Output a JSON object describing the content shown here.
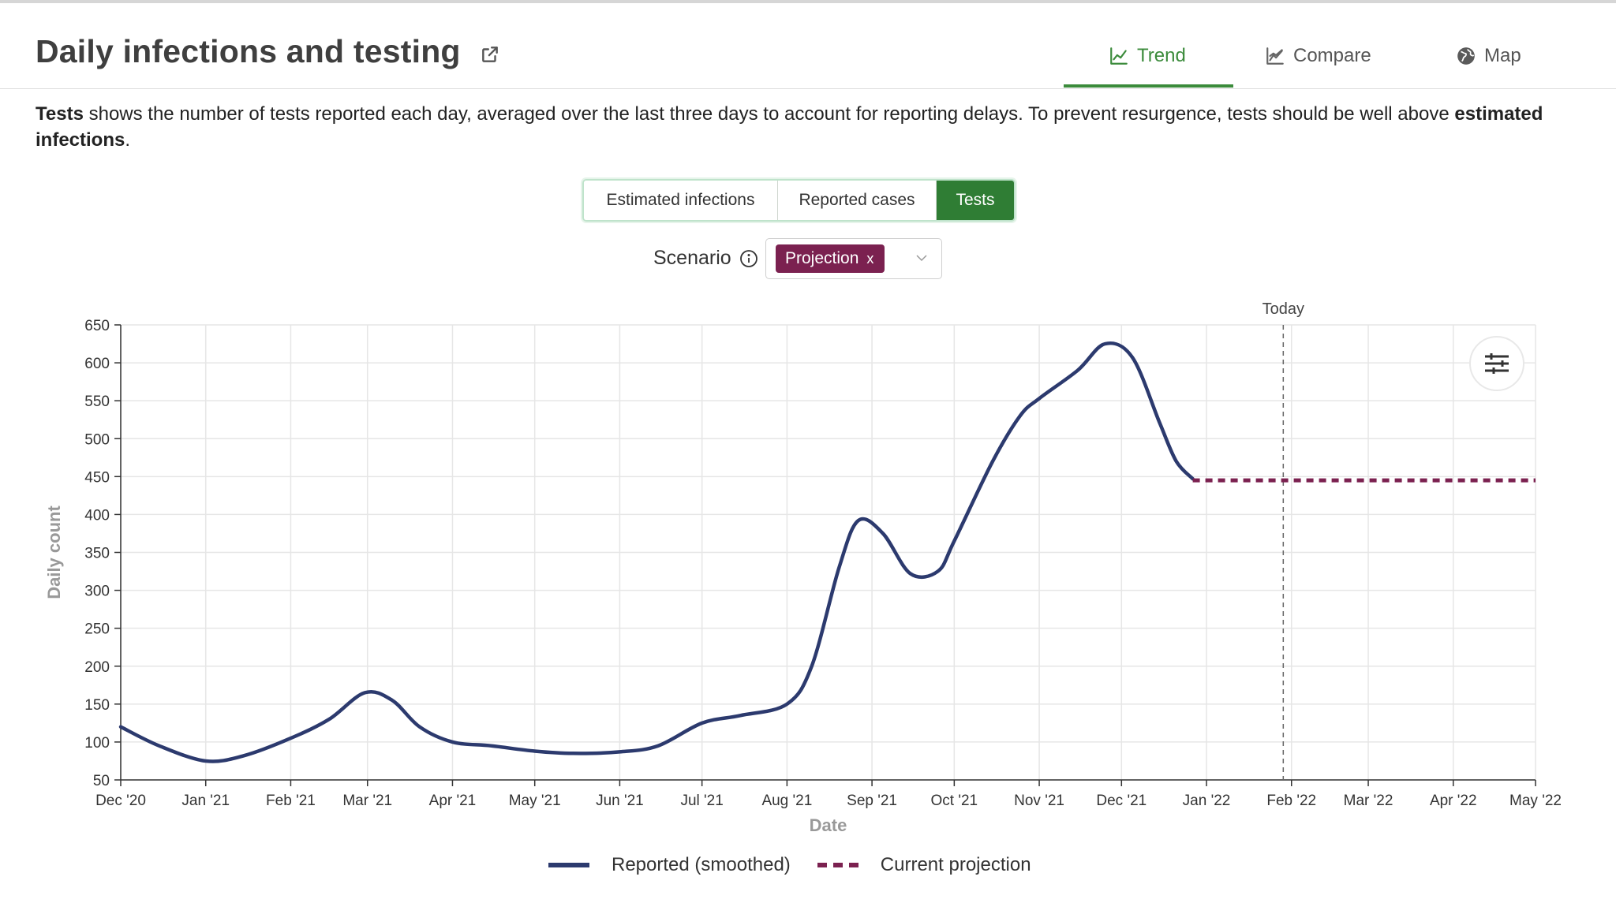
{
  "header": {
    "title": "Daily infections and testing",
    "tabs": [
      {
        "label": "Trend",
        "icon": "line-chart-icon",
        "active": true
      },
      {
        "label": "Compare",
        "icon": "area-chart-icon",
        "active": false
      },
      {
        "label": "Map",
        "icon": "globe-icon",
        "active": false
      }
    ]
  },
  "description": {
    "lead": "Tests",
    "middle": " shows the number of tests reported each day, averaged over the last three days to account for reporting delays. To prevent resurgence, tests should be well above ",
    "bold_tail": "estimated infections",
    "end": "."
  },
  "toggle": {
    "options": [
      "Estimated infections",
      "Reported cases",
      "Tests"
    ],
    "selected": "Tests"
  },
  "scenario": {
    "label": "Scenario",
    "selected_tag": "Projection",
    "remove_glyph": "x"
  },
  "colors": {
    "accent_green": "#3b8b3b",
    "reported_line": "#2c3a6e",
    "projection_line": "#7b2150"
  },
  "chart_data": {
    "type": "line",
    "title": "",
    "xlabel": "Date",
    "ylabel": "Daily count",
    "ylim": [
      50,
      650
    ],
    "yticks": [
      50,
      100,
      150,
      200,
      250,
      300,
      350,
      400,
      450,
      500,
      550,
      600,
      650
    ],
    "xlim": [
      "2020-12-01",
      "2022-05-01"
    ],
    "xticks": [
      {
        "date": "2020-12-01",
        "label": "Dec '20"
      },
      {
        "date": "2021-01-01",
        "label": "Jan '21"
      },
      {
        "date": "2021-02-01",
        "label": "Feb '21"
      },
      {
        "date": "2021-03-01",
        "label": "Mar '21"
      },
      {
        "date": "2021-04-01",
        "label": "Apr '21"
      },
      {
        "date": "2021-05-01",
        "label": "May '21"
      },
      {
        "date": "2021-06-01",
        "label": "Jun '21"
      },
      {
        "date": "2021-07-01",
        "label": "Jul '21"
      },
      {
        "date": "2021-08-01",
        "label": "Aug '21"
      },
      {
        "date": "2021-09-01",
        "label": "Sep '21"
      },
      {
        "date": "2021-10-01",
        "label": "Oct '21"
      },
      {
        "date": "2021-11-01",
        "label": "Nov '21"
      },
      {
        "date": "2021-12-01",
        "label": "Dec '21"
      },
      {
        "date": "2022-01-01",
        "label": "Jan '22"
      },
      {
        "date": "2022-02-01",
        "label": "Feb '22"
      },
      {
        "date": "2022-03-01",
        "label": "Mar '22"
      },
      {
        "date": "2022-04-01",
        "label": "Apr '22"
      },
      {
        "date": "2022-05-01",
        "label": "May '22"
      }
    ],
    "grid": true,
    "legend_position": "bottom",
    "annotations": [
      {
        "type": "vline",
        "date": "2022-01-29",
        "label": "Today"
      }
    ],
    "series": [
      {
        "name": "Reported (smoothed)",
        "style": "solid",
        "color": "#2c3a6e",
        "points": [
          [
            "2020-12-01",
            120
          ],
          [
            "2020-12-15",
            95
          ],
          [
            "2021-01-01",
            75
          ],
          [
            "2021-01-15",
            82
          ],
          [
            "2021-02-01",
            105
          ],
          [
            "2021-02-15",
            130
          ],
          [
            "2021-02-28",
            165
          ],
          [
            "2021-03-10",
            155
          ],
          [
            "2021-03-20",
            120
          ],
          [
            "2021-04-01",
            100
          ],
          [
            "2021-04-15",
            95
          ],
          [
            "2021-05-01",
            88
          ],
          [
            "2021-05-15",
            85
          ],
          [
            "2021-06-01",
            87
          ],
          [
            "2021-06-15",
            95
          ],
          [
            "2021-07-01",
            125
          ],
          [
            "2021-07-15",
            135
          ],
          [
            "2021-08-01",
            150
          ],
          [
            "2021-08-10",
            200
          ],
          [
            "2021-08-20",
            330
          ],
          [
            "2021-08-27",
            392
          ],
          [
            "2021-09-05",
            375
          ],
          [
            "2021-09-15",
            322
          ],
          [
            "2021-09-25",
            325
          ],
          [
            "2021-10-01",
            365
          ],
          [
            "2021-10-15",
            470
          ],
          [
            "2021-10-25",
            530
          ],
          [
            "2021-11-01",
            553
          ],
          [
            "2021-11-15",
            590
          ],
          [
            "2021-11-25",
            625
          ],
          [
            "2021-12-05",
            607
          ],
          [
            "2021-12-15",
            520
          ],
          [
            "2021-12-21",
            470
          ],
          [
            "2021-12-27",
            447
          ]
        ]
      },
      {
        "name": "Current projection",
        "style": "dashed",
        "color": "#7b2150",
        "points": [
          [
            "2021-12-27",
            445
          ],
          [
            "2022-05-01",
            445
          ]
        ]
      }
    ]
  }
}
